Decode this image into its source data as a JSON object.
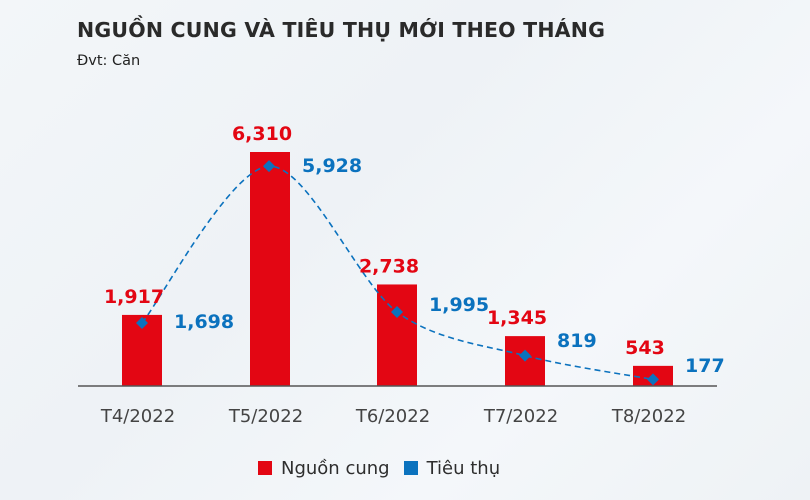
{
  "header": {
    "title": "NGUỒN CUNG VÀ TIÊU THỤ MỚI THEO THÁNG",
    "unit": "Đvt: Căn"
  },
  "colors": {
    "supply": "#E30613",
    "consumption": "#0B72BE",
    "axis": "#555555",
    "text": "#2a2a2a"
  },
  "legend": {
    "items": [
      {
        "label": "Nguồn cung",
        "color": "#E30613"
      },
      {
        "label": "Tiêu thụ",
        "color": "#0B72BE"
      }
    ]
  },
  "chart_data": {
    "type": "bar",
    "title": "NGUỒN CUNG VÀ TIÊU THỤ MỚI THEO THÁNG",
    "subtitle": "Đvt: Căn",
    "xlabel": "",
    "ylabel": "",
    "categories": [
      "T4/2022",
      "T5/2022",
      "T6/2022",
      "T7/2022",
      "T8/2022"
    ],
    "series": [
      {
        "name": "Nguồn cung",
        "type": "bar",
        "color": "#E30613",
        "values": [
          1917,
          6310,
          2738,
          1345,
          543
        ],
        "labels": [
          "1,917",
          "6,310",
          "2,738",
          "1,345",
          "543"
        ]
      },
      {
        "name": "Tiêu thụ",
        "type": "line",
        "style": "dashed-smooth-with-diamond-markers",
        "color": "#0B72BE",
        "values": [
          1698,
          5928,
          1995,
          819,
          177
        ],
        "labels": [
          "1,698",
          "5,928",
          "1,995",
          "819",
          "177"
        ]
      }
    ],
    "ylim": [
      0,
      6310
    ],
    "grid": false,
    "y_axis_visible": false,
    "legend_position": "bottom"
  }
}
